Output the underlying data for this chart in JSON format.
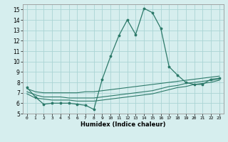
{
  "x": [
    0,
    1,
    2,
    3,
    4,
    5,
    6,
    7,
    8,
    9,
    10,
    11,
    12,
    13,
    14,
    15,
    16,
    17,
    18,
    19,
    20,
    21,
    22,
    23
  ],
  "y_main": [
    7.5,
    6.6,
    5.9,
    6.0,
    6.0,
    6.0,
    5.9,
    5.8,
    5.4,
    8.3,
    10.5,
    12.5,
    14.0,
    12.6,
    15.1,
    14.7,
    13.2,
    9.5,
    8.7,
    8.0,
    7.8,
    7.8,
    8.3,
    8.4
  ],
  "y_line1": [
    7.4,
    7.1,
    7.0,
    7.0,
    7.0,
    7.0,
    7.0,
    7.1,
    7.1,
    7.2,
    7.3,
    7.4,
    7.5,
    7.6,
    7.7,
    7.8,
    7.9,
    8.0,
    8.1,
    8.2,
    8.3,
    8.4,
    8.5,
    8.6
  ],
  "y_line2": [
    7.1,
    6.8,
    6.6,
    6.6,
    6.6,
    6.5,
    6.5,
    6.5,
    6.5,
    6.6,
    6.7,
    6.8,
    6.9,
    7.0,
    7.1,
    7.2,
    7.4,
    7.6,
    7.7,
    7.9,
    8.0,
    8.1,
    8.2,
    8.3
  ],
  "y_line3": [
    6.9,
    6.5,
    6.4,
    6.3,
    6.3,
    6.3,
    6.2,
    6.2,
    6.2,
    6.3,
    6.4,
    6.5,
    6.6,
    6.7,
    6.8,
    6.9,
    7.1,
    7.3,
    7.5,
    7.6,
    7.8,
    7.9,
    8.0,
    8.2
  ],
  "line_color": "#2d7a6a",
  "bg_color": "#d6eeee",
  "grid_color": "#aad4d4",
  "xlabel": "Humidex (Indice chaleur)",
  "ylim": [
    5,
    15.5
  ],
  "xlim": [
    -0.5,
    23.5
  ],
  "yticks": [
    5,
    6,
    7,
    8,
    9,
    10,
    11,
    12,
    13,
    14,
    15
  ],
  "xticks": [
    0,
    1,
    2,
    3,
    4,
    5,
    6,
    7,
    8,
    9,
    10,
    11,
    12,
    13,
    14,
    15,
    16,
    17,
    18,
    19,
    20,
    21,
    22,
    23
  ]
}
